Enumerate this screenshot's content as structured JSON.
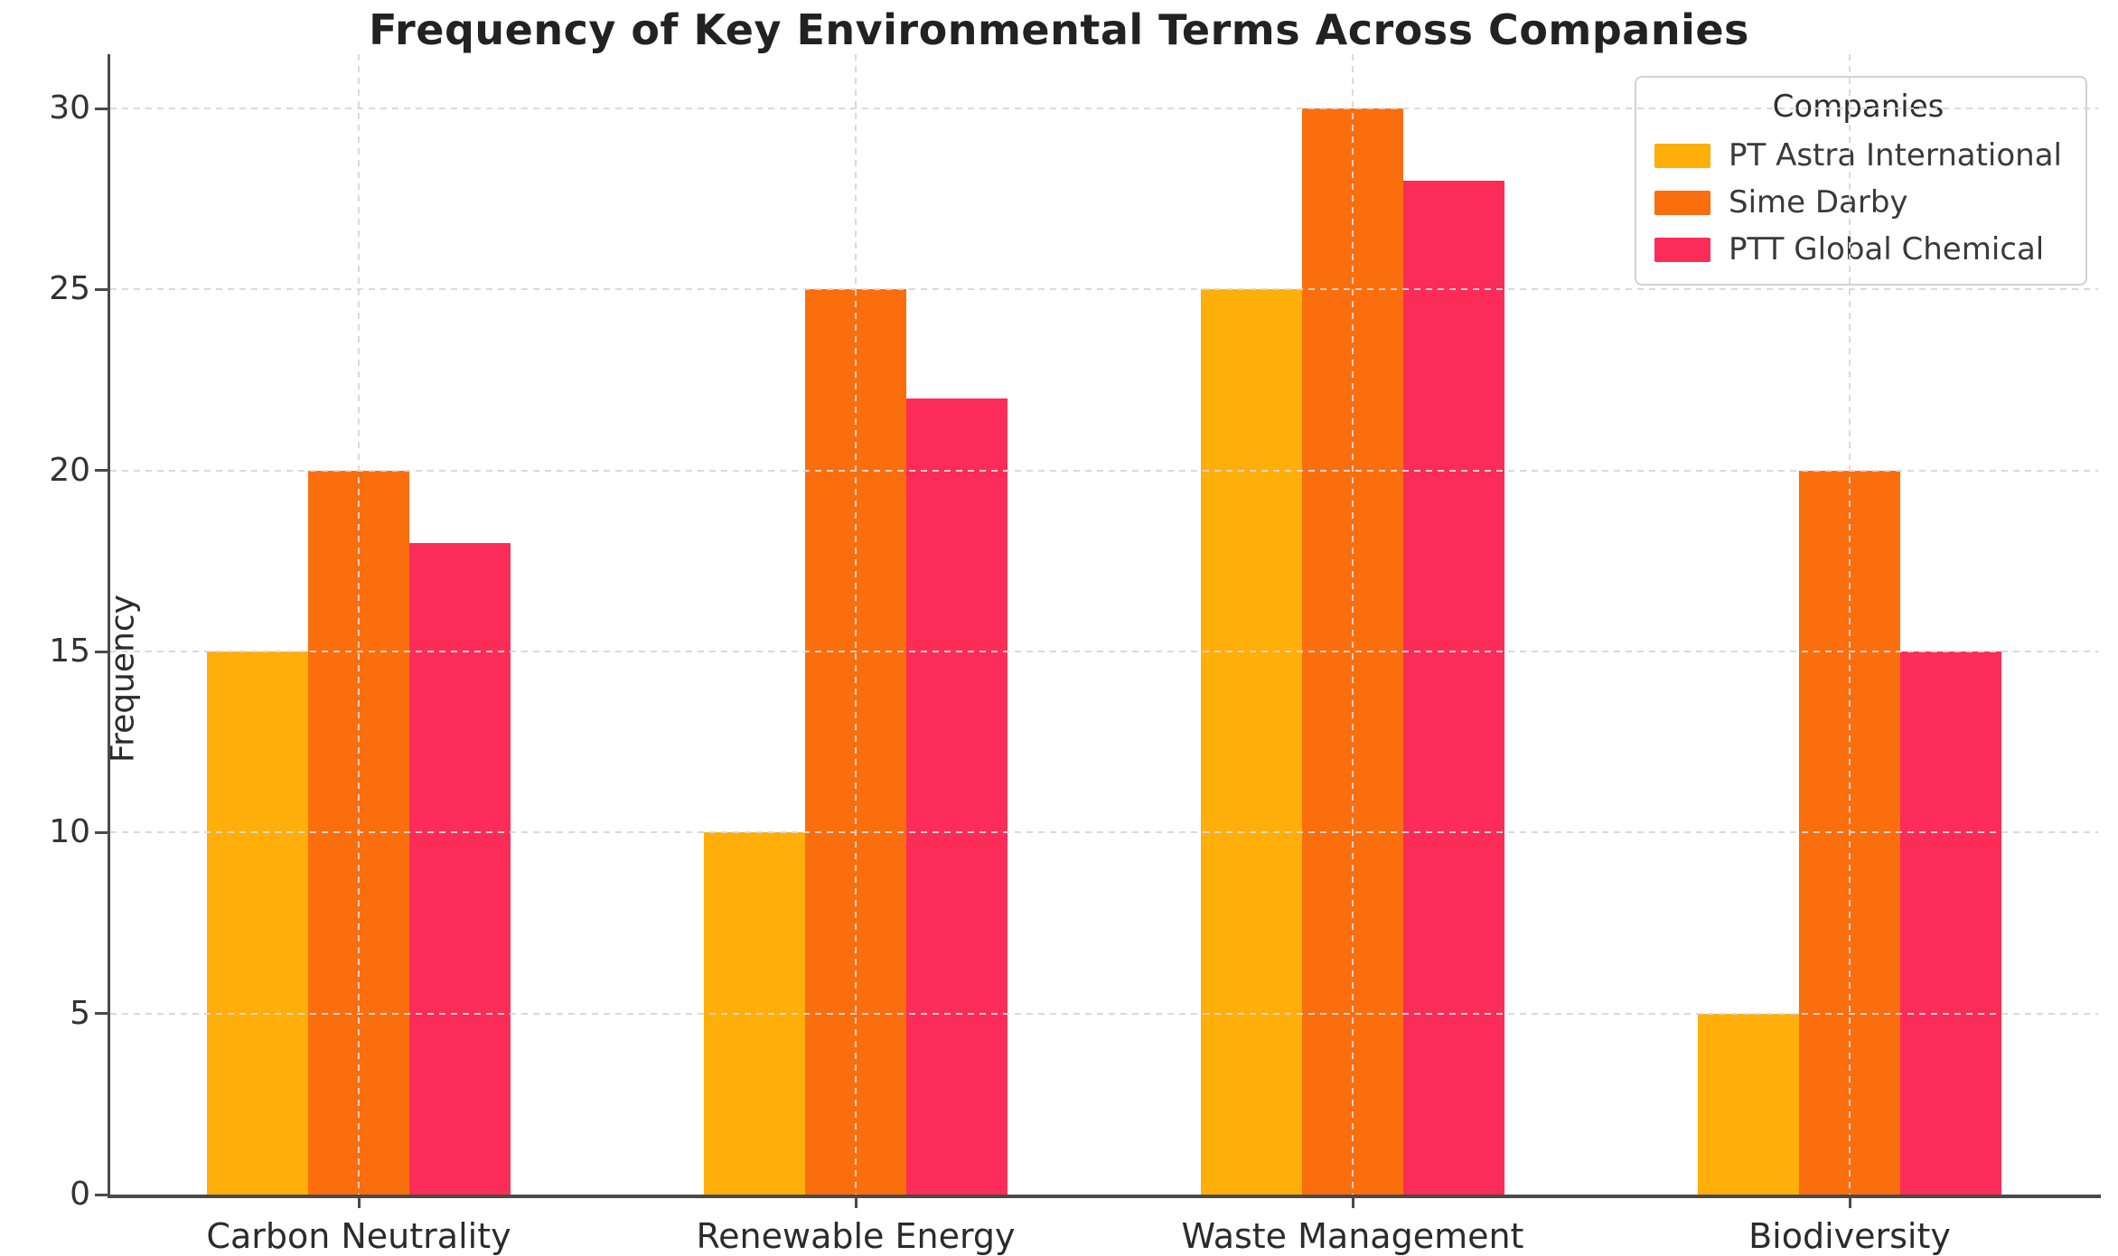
{
  "chart_data": {
    "type": "bar",
    "title": "Frequency of Key Environmental Terms Across Companies",
    "ylabel": "Frequency",
    "xlabel": "",
    "categories": [
      "Carbon Neutrality",
      "Renewable Energy",
      "Waste Management",
      "Biodiversity"
    ],
    "series": [
      {
        "name": "PT Astra International",
        "color": "#FFAE0A",
        "values": [
          15,
          10,
          25,
          5
        ]
      },
      {
        "name": "Sime Darby",
        "color": "#FA6E0E",
        "values": [
          20,
          25,
          30,
          20
        ]
      },
      {
        "name": "PTT Global Chemical",
        "color": "#FB2C58",
        "values": [
          18,
          22,
          28,
          15
        ]
      }
    ],
    "legend_title": "Companies",
    "legend_position": "upper right",
    "ylim": [
      0,
      31.5
    ],
    "yticks": [
      0,
      5,
      10,
      15,
      20,
      25,
      30
    ],
    "grid": true,
    "grid_style": "dashed",
    "spine_color": "#4a4a4a",
    "background": "#ffffff"
  }
}
